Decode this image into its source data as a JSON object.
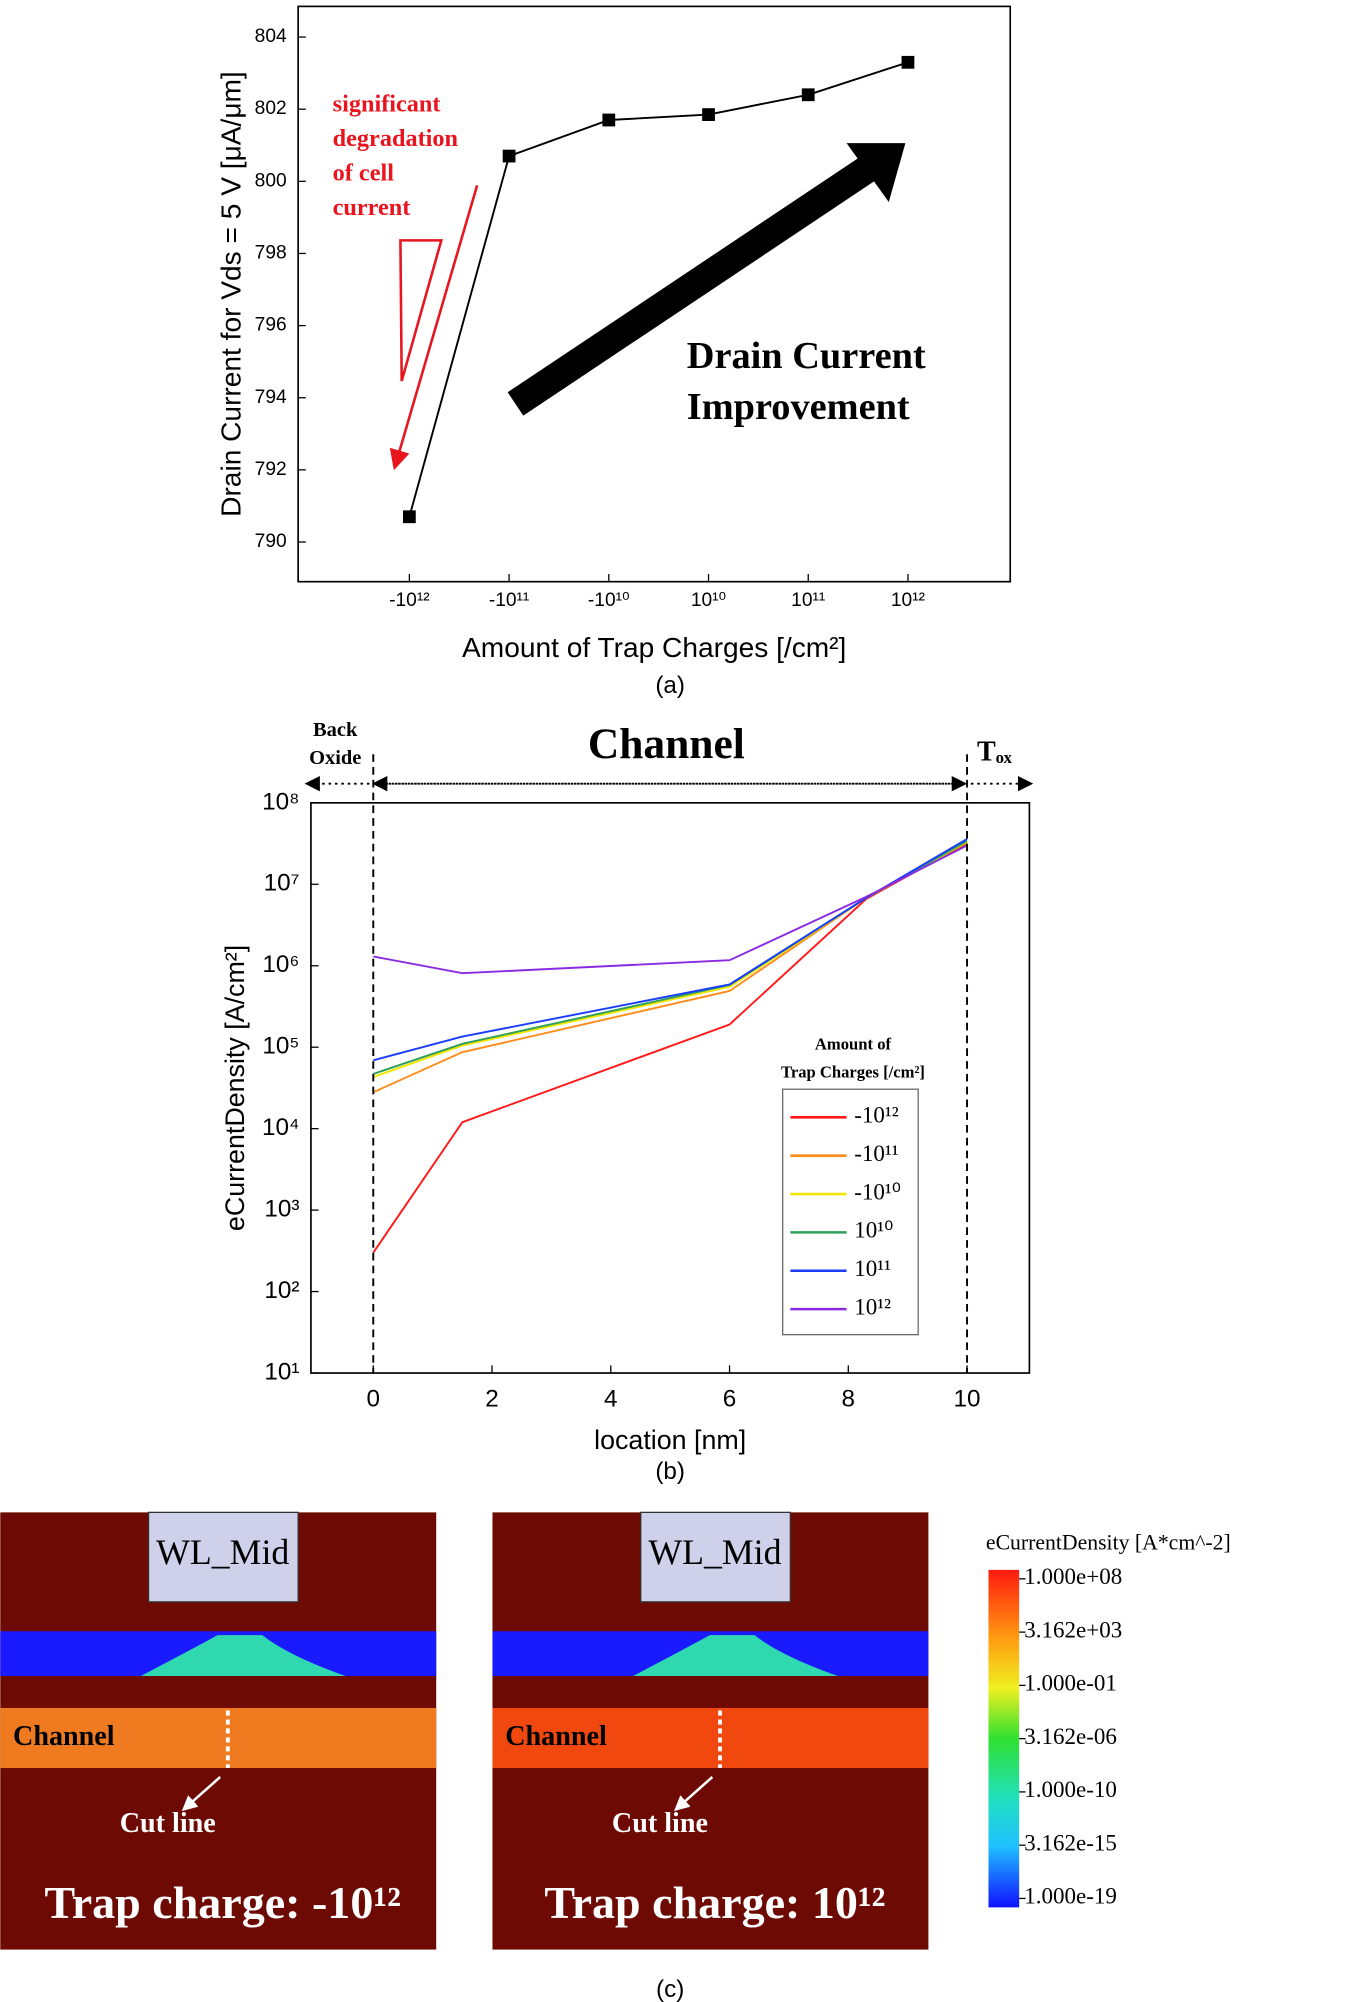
{
  "chart_data": [
    {
      "type": "line",
      "color": "#000000",
      "categories": [
        "-10¹²",
        "-10¹¹",
        "-10¹⁰",
        "10¹⁰",
        "10¹¹",
        "10¹²"
      ],
      "values": [
        790.7,
        800.7,
        801.7,
        801.85,
        802.4,
        803.3
      ],
      "ylim": [
        788.9,
        804.85
      ],
      "yticks": [
        790,
        792,
        794,
        796,
        798,
        800,
        802,
        804
      ],
      "y_label": "Drain Current for Vds = 5 V  [μA/μm]",
      "x_label": "Amount of Trap Charges [/cm²]",
      "caption": "(a)",
      "annotations": [
        {
          "text": [
            "significant",
            "degradation",
            "of cell",
            "current"
          ],
          "color": "#e8141e"
        },
        {
          "text": [
            "Drain Current",
            "Improvement"
          ],
          "color": "#000000"
        }
      ]
    },
    {
      "type": "line",
      "log_y": true,
      "x": [
        0,
        1.5,
        6,
        8.3,
        10
      ],
      "series": [
        {
          "name": "-10¹²",
          "color": "#ff1a1a",
          "values": [
            300,
            12000,
            190000,
            6600000,
            32000000
          ]
        },
        {
          "name": "-10¹¹",
          "color": "#ff8c1a",
          "values": [
            28000,
            87000,
            490000,
            6800000,
            33000000
          ]
        },
        {
          "name": "-10¹⁰",
          "color": "#f2e600",
          "values": [
            43000,
            105000,
            550000,
            6800000,
            33000000
          ]
        },
        {
          "name": "10¹⁰",
          "color": "#2ea05a",
          "values": [
            47000,
            110000,
            580000,
            6800000,
            34000000
          ]
        },
        {
          "name": "10¹¹",
          "color": "#1a3cff",
          "values": [
            69000,
            135000,
            590000,
            6800000,
            36000000
          ]
        },
        {
          "name": "10¹²",
          "color": "#8a2be2",
          "values": [
            1300000,
            810000,
            1170000,
            7000000,
            30000000
          ]
        }
      ],
      "xlim": [
        -1.05,
        11.05
      ],
      "xticks": [
        0,
        2,
        4,
        6,
        8,
        10
      ],
      "ylim": [
        10,
        100000000
      ],
      "yticks": [
        {
          "value": 10,
          "label": "10¹"
        },
        {
          "value": 100,
          "label": "10²"
        },
        {
          "value": 1000,
          "label": "10³"
        },
        {
          "value": 10000,
          "label": "10⁴"
        },
        {
          "value": 100000,
          "label": "10⁵"
        },
        {
          "value": 1000000,
          "label": "10⁶"
        },
        {
          "value": 10000000,
          "label": "10⁷"
        },
        {
          "value": 100000000,
          "label": "10⁸"
        }
      ],
      "y_label": "eCurrentDensity [A/cm²]",
      "x_label": "location [nm]",
      "caption": "(b)",
      "legend_title": [
        "Amount of",
        "Trap Charges [/cm²]"
      ],
      "annotations": [
        {
          "text": [
            "Back",
            "Oxide"
          ]
        },
        {
          "text": [
            "Channel"
          ]
        },
        {
          "text": [
            "Tₒₓ"
          ]
        }
      ]
    }
  ],
  "panel_c": {
    "panels": [
      {
        "gate": "WL_Mid",
        "channel": "Channel",
        "cut": "Cut line",
        "label": "Trap charge: -10¹²"
      },
      {
        "gate": "WL_Mid",
        "channel": "Channel",
        "cut": "Cut line",
        "label": "Trap charge: 10¹²"
      }
    ],
    "colorbar": {
      "title": "eCurrentDensity [A*cm^-2]",
      "lim": [
        1e-19,
        100000000
      ],
      "ticks": [
        {
          "value": 100000000,
          "label": "1.000e+08"
        },
        {
          "value": 3162,
          "label": "3.162e+03"
        },
        {
          "value": 0.1,
          "label": "1.000e-01"
        },
        {
          "value": 3.162e-06,
          "label": "3.162e-06"
        },
        {
          "value": 1e-10,
          "label": "1.000e-10"
        },
        {
          "value": 3.162e-15,
          "label": "3.162e-15"
        },
        {
          "value": 1e-19,
          "label": "1.000e-19"
        }
      ]
    },
    "caption": "(c)"
  }
}
